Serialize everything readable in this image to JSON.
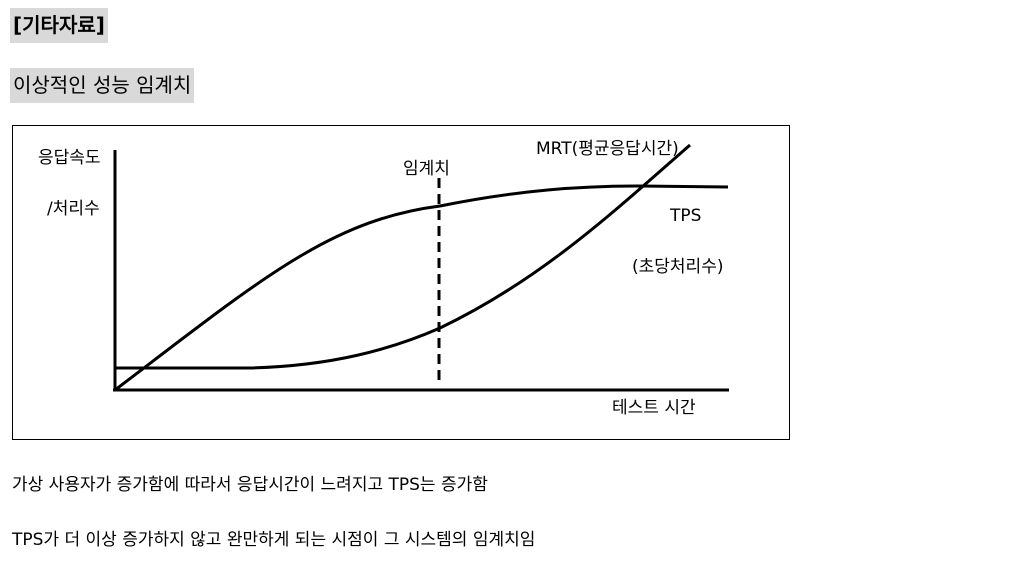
{
  "header": {
    "title": "[기타자료]",
    "subtitle": "이상적인 성능 임계치"
  },
  "diagram": {
    "y_axis_label_1": "응답속도",
    "y_axis_label_2": "/처리수",
    "threshold_label": "임계치",
    "mrt_label": "MRT(평균응답시간)",
    "tps_label": "TPS",
    "tps_desc": "(초당처리수)",
    "x_axis_label": "테스트 시간"
  },
  "paragraphs": [
    "가상 사용자가 증가함에 따라서 응답시간이 느려지고 TPS는 증가함",
    "TPS가 더 이상 증가하지 않고 완만하게 되는 시점이 그 시스템의 임계치임"
  ]
}
